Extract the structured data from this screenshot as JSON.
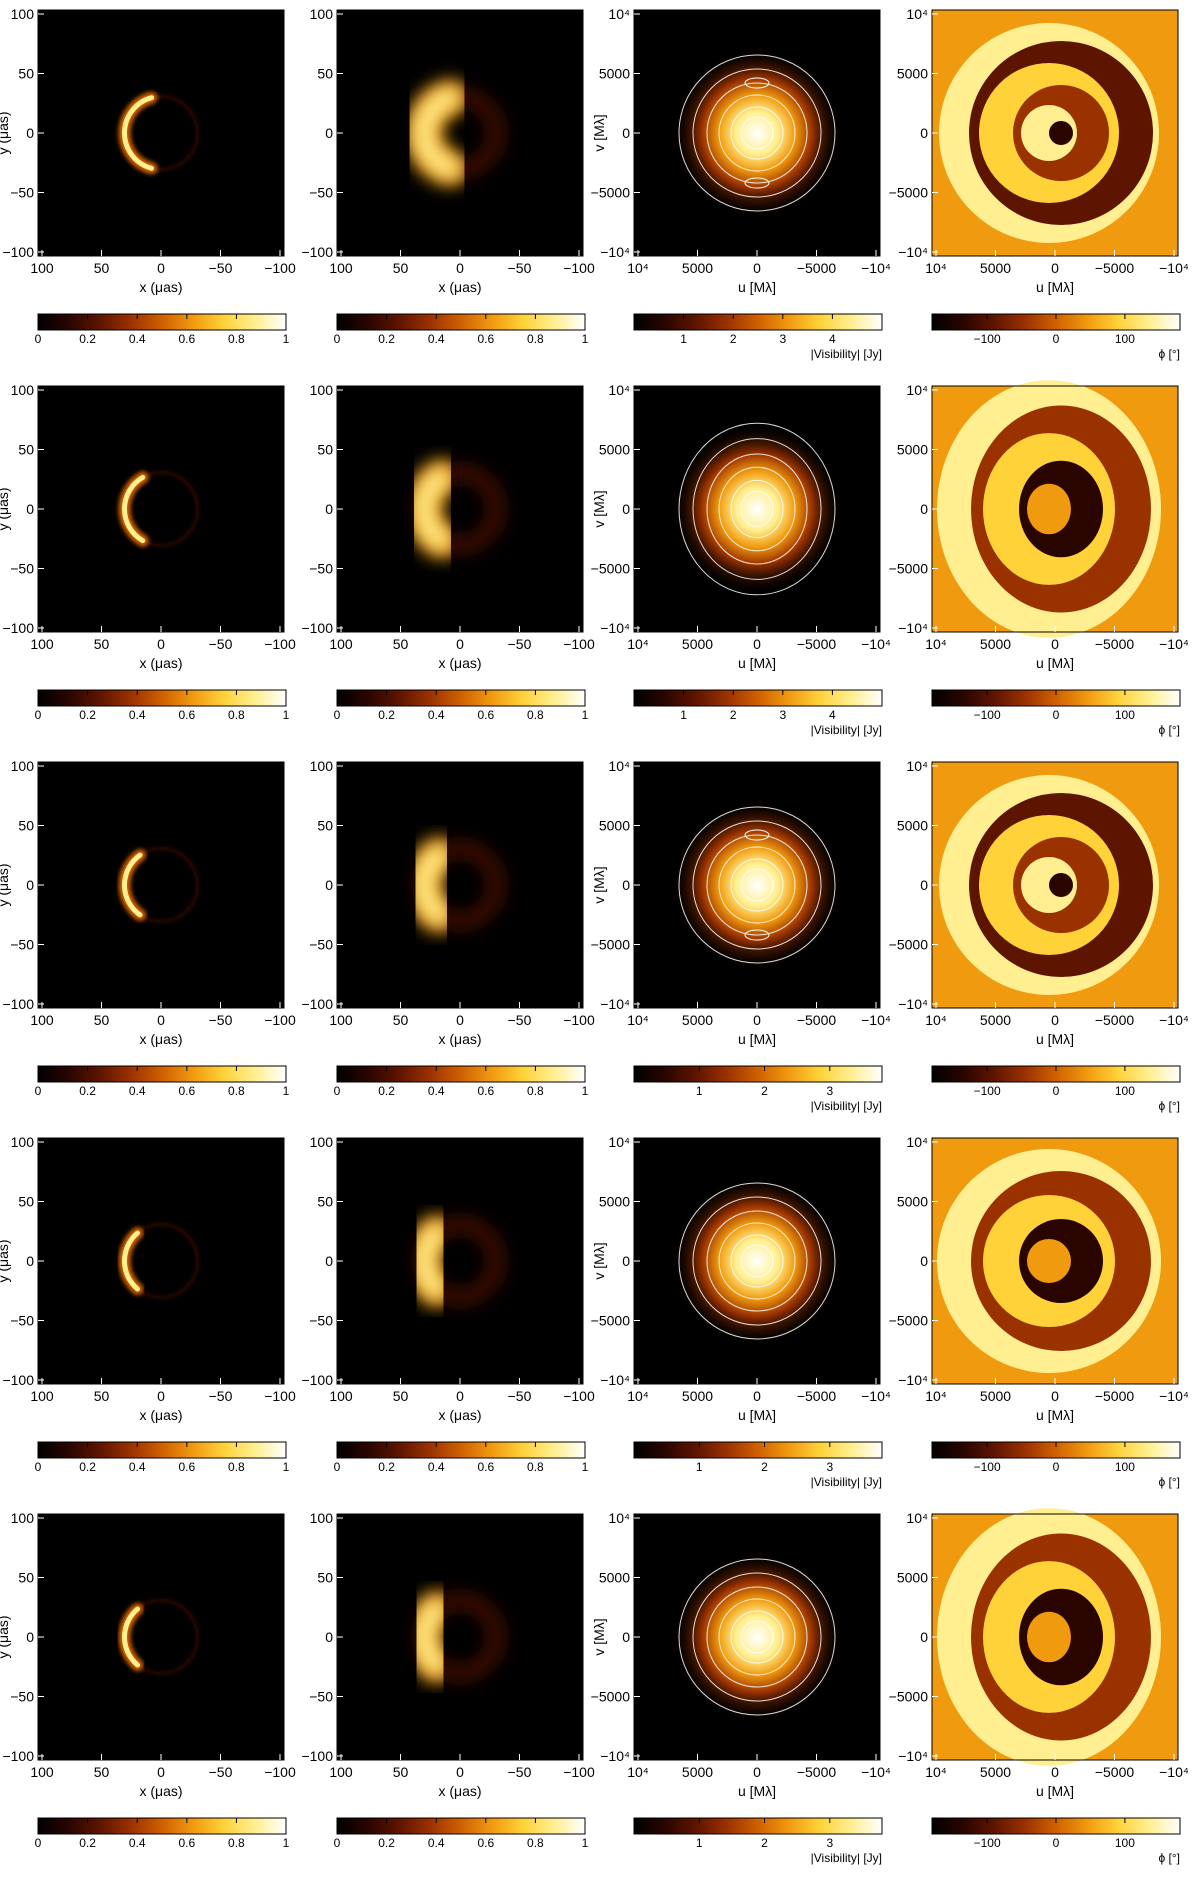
{
  "figure_title": "",
  "colormap": [
    "#000000",
    "#2a0500",
    "#5e1500",
    "#9a3200",
    "#d06000",
    "#f09a10",
    "#ffd23a",
    "#ffef90",
    "#ffffff"
  ],
  "columns": [
    {
      "kind": "image",
      "xlabel": "x (μas)",
      "ylabel": "y (μas)",
      "x_ticks": [
        "100",
        "50",
        "0",
        "−50",
        "−100"
      ],
      "y_ticks": [
        "100",
        "50",
        "0",
        "−50",
        "−100"
      ],
      "colorbar": {
        "ticks": [
          "0",
          "0.2",
          "0.4",
          "0.6",
          "0.8",
          "1"
        ],
        "label": ""
      }
    },
    {
      "kind": "image_blurred",
      "xlabel": "x (μas)",
      "ylabel": "",
      "x_ticks": [
        "100",
        "50",
        "0",
        "−50",
        "−100"
      ],
      "y_ticks": [
        "100",
        "50",
        "0",
        "−50",
        "−100"
      ],
      "colorbar": {
        "ticks": [
          "0",
          "0.2",
          "0.4",
          "0.6",
          "0.8",
          "1"
        ],
        "label": ""
      }
    },
    {
      "kind": "visibility_amplitude",
      "xlabel": "u [Mλ]",
      "ylabel": "v [Mλ]",
      "x_ticks": [
        "10⁴",
        "5000",
        "0",
        "−5000",
        "−10⁴"
      ],
      "y_ticks": [
        "10⁴",
        "5000",
        "0",
        "−5000",
        "−10⁴"
      ],
      "colorbar": {
        "label": "|Visibility| [Jy]"
      }
    },
    {
      "kind": "visibility_phase",
      "xlabel": "u [Mλ]",
      "ylabel": "",
      "x_ticks": [
        "10⁴",
        "5000",
        "0",
        "−5000",
        "−10⁴"
      ],
      "y_ticks": [
        "10⁴",
        "5000",
        "0",
        "−5000",
        "−10⁴"
      ],
      "colorbar": {
        "ticks": [
          "−100",
          "0",
          "100"
        ],
        "label": "ϕ [°]"
      }
    }
  ],
  "chart_data": [
    {
      "type": "heatmap",
      "row": 1,
      "xlim": [
        100,
        -100
      ],
      "ylim": [
        -100,
        100
      ],
      "image_panels": {
        "ring_radius": 27,
        "bright_side": "left",
        "crescent_arc_deg": 150
      },
      "amplitude_colorbar_ticks": [
        "1",
        "2",
        "3",
        "4"
      ],
      "amplitude_max": 5.0,
      "amplitude_contours": "closed contours around centre with secondary lobes at v ≈ ±4000",
      "phase_pattern": "spiral"
    },
    {
      "type": "heatmap",
      "row": 2,
      "xlim": [
        100,
        -100
      ],
      "ylim": [
        -100,
        100
      ],
      "image_panels": {
        "ring_radius": 27,
        "bright_side": "left",
        "crescent_arc_deg": 120
      },
      "amplitude_colorbar_ticks": [
        "1",
        "2",
        "3",
        "4"
      ],
      "amplitude_max": 5.0,
      "amplitude_contours": "waisted contours elongated in v",
      "phase_pattern": "elliptical rings"
    },
    {
      "type": "heatmap",
      "row": 3,
      "xlim": [
        100,
        -100
      ],
      "ylim": [
        -100,
        100
      ],
      "image_panels": {
        "ring_radius": 27,
        "bright_side": "left",
        "crescent_arc_deg": 110
      },
      "amplitude_colorbar_ticks": [
        "1",
        "2",
        "3"
      ],
      "amplitude_max": 3.8,
      "amplitude_contours": "closed contours with small secondary lobes",
      "phase_pattern": "spiral"
    },
    {
      "type": "heatmap",
      "row": 4,
      "xlim": [
        100,
        -100
      ],
      "ylim": [
        -100,
        100
      ],
      "image_panels": {
        "ring_radius": 27,
        "bright_side": "left",
        "crescent_arc_deg": 100
      },
      "amplitude_colorbar_ticks": [
        "1",
        "2",
        "3"
      ],
      "amplitude_max": 3.8,
      "amplitude_contours": "bow-tie shaped contours",
      "phase_pattern": "rings"
    },
    {
      "type": "heatmap",
      "row": 5,
      "xlim": [
        100,
        -100
      ],
      "ylim": [
        -100,
        100
      ],
      "image_panels": {
        "ring_radius": 27,
        "bright_side": "left",
        "crescent_arc_deg": 100
      },
      "amplitude_colorbar_ticks": [
        "1",
        "2",
        "3"
      ],
      "amplitude_max": 3.8,
      "amplitude_contours": "bow-tie shaped contours",
      "phase_pattern": "elliptical rings"
    }
  ]
}
